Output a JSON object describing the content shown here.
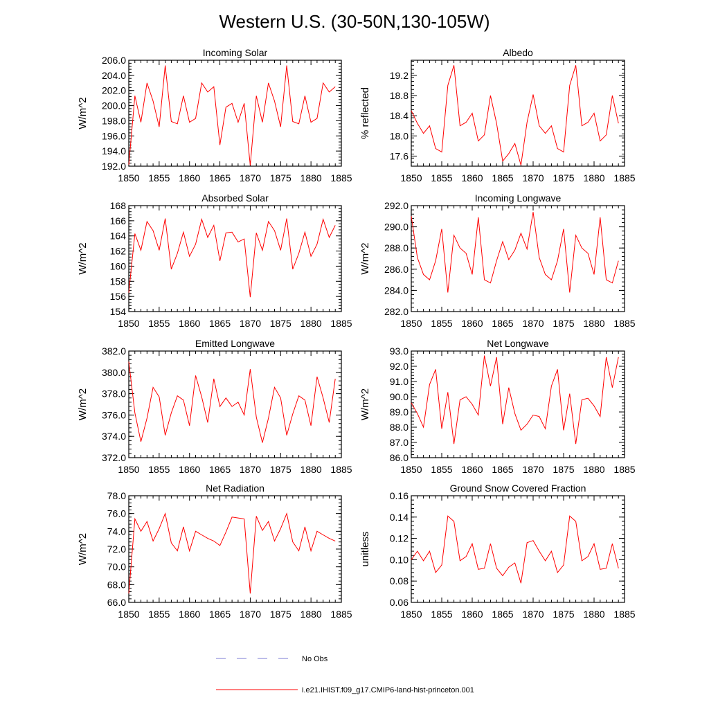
{
  "figure": {
    "title": "Western U.S. (30-50N,130-105W)",
    "legend": {
      "placement": "bottom-center",
      "items": [
        {
          "label": "No Obs",
          "style": "dashed",
          "color": "#7b7bd6"
        },
        {
          "label": "i.e21.IHIST.f09_g17.CMIP6-land-hist-princeton.001",
          "style": "solid",
          "color": "#ff0000"
        }
      ]
    }
  },
  "chart_data": [
    {
      "type": "line",
      "title": "Incoming Solar",
      "ylabel": "W/m^2",
      "xlim": [
        1850,
        1885
      ],
      "ylim": [
        192,
        206
      ],
      "xticks": [
        "1850",
        "1855",
        "1860",
        "1865",
        "1870",
        "1875",
        "1880",
        "1885"
      ],
      "yticks": [
        "192.0",
        "194.0",
        "196.0",
        "198.0",
        "200.0",
        "202.0",
        "204.0",
        "206.0"
      ],
      "series": [
        {
          "color": "#ff0000",
          "x": [
            1850,
            1851,
            1852,
            1853,
            1854,
            1855,
            1856,
            1857,
            1858,
            1859,
            1860,
            1861,
            1862,
            1863,
            1864,
            1865,
            1866,
            1867,
            1868,
            1869,
            1870,
            1871,
            1872,
            1873,
            1874,
            1875,
            1876,
            1877,
            1878,
            1879,
            1880,
            1881,
            1882,
            1883,
            1884
          ],
          "y": [
            192.2,
            201.3,
            197.8,
            203.0,
            200.6,
            197.2,
            205.3,
            197.9,
            197.6,
            201.3,
            197.8,
            198.3,
            203.0,
            201.8,
            202.5,
            194.8,
            199.8,
            200.3,
            197.8,
            200.3,
            192.1,
            201.3,
            197.8,
            203.0,
            200.6,
            197.2,
            205.3,
            197.9,
            197.6,
            201.3,
            197.8,
            198.3,
            203.0,
            201.8,
            202.5
          ]
        }
      ]
    },
    {
      "type": "line",
      "title": "Albedo",
      "ylabel": "% reflected",
      "xlim": [
        1850,
        1885
      ],
      "ylim": [
        17.4,
        19.5
      ],
      "xticks": [
        "1850",
        "1855",
        "1860",
        "1865",
        "1870",
        "1875",
        "1880",
        "1885"
      ],
      "yticks": [
        "17.6",
        "18.0",
        "18.4",
        "18.8",
        "19.2"
      ],
      "series": [
        {
          "color": "#ff0000",
          "x": [
            1850,
            1851,
            1852,
            1853,
            1854,
            1855,
            1856,
            1857,
            1858,
            1859,
            1860,
            1861,
            1862,
            1863,
            1864,
            1865,
            1866,
            1867,
            1868,
            1869,
            1870,
            1871,
            1872,
            1873,
            1874,
            1875,
            1876,
            1877,
            1878,
            1879,
            1880,
            1881,
            1882,
            1883,
            1884
          ],
          "y": [
            18.5,
            18.25,
            18.05,
            18.2,
            17.75,
            17.68,
            19.0,
            19.4,
            18.2,
            18.27,
            18.45,
            17.9,
            18.02,
            18.8,
            18.25,
            17.5,
            17.65,
            17.85,
            17.42,
            18.27,
            18.82,
            18.2,
            18.05,
            18.2,
            17.75,
            17.68,
            19.0,
            19.4,
            18.2,
            18.27,
            18.45,
            17.9,
            18.02,
            18.8,
            18.25
          ]
        }
      ]
    },
    {
      "type": "line",
      "title": "Absorbed Solar",
      "ylabel": "W/m^2",
      "xlim": [
        1850,
        1885
      ],
      "ylim": [
        154,
        168
      ],
      "xticks": [
        "1850",
        "1855",
        "1860",
        "1865",
        "1870",
        "1875",
        "1880",
        "1885"
      ],
      "yticks": [
        "154",
        "156",
        "158",
        "160",
        "162",
        "164",
        "166",
        "168"
      ],
      "series": [
        {
          "color": "#ff0000",
          "x": [
            1850,
            1851,
            1852,
            1853,
            1854,
            1855,
            1856,
            1857,
            1858,
            1859,
            1860,
            1861,
            1862,
            1863,
            1864,
            1865,
            1866,
            1867,
            1868,
            1869,
            1870,
            1871,
            1872,
            1873,
            1874,
            1875,
            1876,
            1877,
            1878,
            1879,
            1880,
            1881,
            1882,
            1883,
            1884
          ],
          "y": [
            156.5,
            164.3,
            162.1,
            165.9,
            164.7,
            162.1,
            166.3,
            159.6,
            161.7,
            164.5,
            161.3,
            162.9,
            166.2,
            163.8,
            165.4,
            160.7,
            164.4,
            164.5,
            163.2,
            163.6,
            155.9,
            164.4,
            162.1,
            165.9,
            164.7,
            162.1,
            166.3,
            159.6,
            161.7,
            164.5,
            161.3,
            162.9,
            166.2,
            163.8,
            165.4
          ]
        }
      ]
    },
    {
      "type": "line",
      "title": "Incoming Longwave",
      "ylabel": "W/m^2",
      "xlim": [
        1850,
        1885
      ],
      "ylim": [
        282,
        292
      ],
      "xticks": [
        "1850",
        "1855",
        "1860",
        "1865",
        "1870",
        "1875",
        "1880",
        "1885"
      ],
      "yticks": [
        "282.0",
        "284.0",
        "286.0",
        "288.0",
        "290.0",
        "292.0"
      ],
      "series": [
        {
          "color": "#ff0000",
          "x": [
            1850,
            1851,
            1852,
            1853,
            1854,
            1855,
            1856,
            1857,
            1858,
            1859,
            1860,
            1861,
            1862,
            1863,
            1864,
            1865,
            1866,
            1867,
            1868,
            1869,
            1870,
            1871,
            1872,
            1873,
            1874,
            1875,
            1876,
            1877,
            1878,
            1879,
            1880,
            1881,
            1882,
            1883,
            1884
          ],
          "y": [
            291.0,
            287.1,
            285.5,
            285.0,
            286.8,
            289.8,
            283.8,
            289.2,
            288.0,
            287.5,
            285.5,
            290.9,
            285.0,
            284.7,
            286.8,
            288.6,
            286.9,
            287.8,
            289.4,
            287.9,
            291.4,
            287.1,
            285.5,
            285.0,
            286.8,
            289.8,
            283.8,
            289.2,
            288.0,
            287.5,
            285.5,
            290.9,
            285.0,
            284.7,
            286.8
          ]
        }
      ]
    },
    {
      "type": "line",
      "title": "Emitted Longwave",
      "ylabel": "W/m^2",
      "xlim": [
        1850,
        1885
      ],
      "ylim": [
        372,
        382
      ],
      "xticks": [
        "1850",
        "1855",
        "1860",
        "1865",
        "1870",
        "1875",
        "1880",
        "1885"
      ],
      "yticks": [
        "372.0",
        "374.0",
        "376.0",
        "378.0",
        "380.0",
        "382.0"
      ],
      "series": [
        {
          "color": "#ff0000",
          "x": [
            1850,
            1851,
            1852,
            1853,
            1854,
            1855,
            1856,
            1857,
            1858,
            1859,
            1860,
            1861,
            1862,
            1863,
            1864,
            1865,
            1866,
            1867,
            1868,
            1869,
            1870,
            1871,
            1872,
            1873,
            1874,
            1875,
            1876,
            1877,
            1878,
            1879,
            1880,
            1881,
            1882,
            1883,
            1884
          ],
          "y": [
            381.0,
            376.2,
            373.5,
            375.7,
            378.6,
            377.7,
            374.1,
            376.2,
            377.8,
            377.4,
            375.0,
            379.7,
            377.7,
            375.3,
            379.4,
            376.8,
            377.6,
            376.8,
            377.2,
            376.0,
            380.3,
            375.8,
            373.4,
            375.7,
            378.6,
            377.6,
            374.1,
            376.1,
            377.8,
            377.4,
            375.0,
            379.6,
            377.6,
            375.3,
            379.4
          ]
        }
      ]
    },
    {
      "type": "line",
      "title": "Net Longwave",
      "ylabel": "W/m^2",
      "xlim": [
        1850,
        1885
      ],
      "ylim": [
        86,
        93
      ],
      "xticks": [
        "1850",
        "1855",
        "1860",
        "1865",
        "1870",
        "1875",
        "1880",
        "1885"
      ],
      "yticks": [
        "86.0",
        "87.0",
        "88.0",
        "89.0",
        "90.0",
        "91.0",
        "92.0",
        "93.0"
      ],
      "series": [
        {
          "color": "#ff0000",
          "x": [
            1850,
            1851,
            1852,
            1853,
            1854,
            1855,
            1856,
            1857,
            1858,
            1859,
            1860,
            1861,
            1862,
            1863,
            1864,
            1865,
            1866,
            1867,
            1868,
            1869,
            1870,
            1871,
            1872,
            1873,
            1874,
            1875,
            1876,
            1877,
            1878,
            1879,
            1880,
            1881,
            1882,
            1883,
            1884
          ],
          "y": [
            89.6,
            88.9,
            88.0,
            90.8,
            91.8,
            87.9,
            90.3,
            86.9,
            89.8,
            90.0,
            89.5,
            88.8,
            92.7,
            90.7,
            92.6,
            88.2,
            90.6,
            88.9,
            87.8,
            88.2,
            88.8,
            88.7,
            87.9,
            90.7,
            91.8,
            87.8,
            90.2,
            86.9,
            89.8,
            89.9,
            89.4,
            88.7,
            92.6,
            90.6,
            92.6
          ]
        }
      ]
    },
    {
      "type": "line",
      "title": "Net Radiation",
      "ylabel": "W/m^2",
      "xlim": [
        1850,
        1885
      ],
      "ylim": [
        66,
        78
      ],
      "xticks": [
        "1850",
        "1855",
        "1860",
        "1865",
        "1870",
        "1875",
        "1880",
        "1885"
      ],
      "yticks": [
        "66.0",
        "68.0",
        "70.0",
        "72.0",
        "74.0",
        "76.0",
        "78.0"
      ],
      "series": [
        {
          "color": "#ff0000",
          "x": [
            1850,
            1851,
            1852,
            1853,
            1854,
            1855,
            1856,
            1857,
            1858,
            1859,
            1860,
            1861,
            1862,
            1863,
            1864,
            1865,
            1866,
            1867,
            1868,
            1869,
            1870,
            1871,
            1872,
            1873,
            1874,
            1875,
            1876,
            1877,
            1878,
            1879,
            1880,
            1881,
            1882,
            1883,
            1884
          ],
          "y": [
            67.0,
            75.4,
            74.0,
            75.1,
            72.9,
            74.3,
            76.0,
            72.7,
            71.8,
            74.5,
            71.8,
            74.0,
            73.6,
            73.2,
            72.9,
            72.4,
            73.9,
            75.6,
            75.5,
            75.4,
            67.0,
            75.7,
            74.1,
            75.1,
            72.9,
            74.3,
            76.0,
            72.8,
            71.8,
            74.5,
            71.8,
            74.0,
            73.6,
            73.2,
            72.9
          ]
        }
      ]
    },
    {
      "type": "line",
      "title": "Ground Snow Covered Fraction",
      "ylabel": "unitless",
      "xlim": [
        1850,
        1885
      ],
      "ylim": [
        0.06,
        0.16
      ],
      "xticks": [
        "1850",
        "1855",
        "1860",
        "1865",
        "1870",
        "1875",
        "1880",
        "1885"
      ],
      "yticks": [
        "0.06",
        "0.08",
        "0.10",
        "0.12",
        "0.14",
        "0.16"
      ],
      "series": [
        {
          "color": "#ff0000",
          "x": [
            1850,
            1851,
            1852,
            1853,
            1854,
            1855,
            1856,
            1857,
            1858,
            1859,
            1860,
            1861,
            1862,
            1863,
            1864,
            1865,
            1866,
            1867,
            1868,
            1869,
            1870,
            1871,
            1872,
            1873,
            1874,
            1875,
            1876,
            1877,
            1878,
            1879,
            1880,
            1881,
            1882,
            1883,
            1884
          ],
          "y": [
            0.1,
            0.108,
            0.099,
            0.108,
            0.088,
            0.095,
            0.141,
            0.136,
            0.099,
            0.103,
            0.115,
            0.091,
            0.092,
            0.115,
            0.092,
            0.085,
            0.093,
            0.097,
            0.078,
            0.116,
            0.118,
            0.108,
            0.099,
            0.108,
            0.088,
            0.095,
            0.141,
            0.136,
            0.099,
            0.103,
            0.115,
            0.091,
            0.092,
            0.115,
            0.092
          ]
        }
      ]
    }
  ]
}
